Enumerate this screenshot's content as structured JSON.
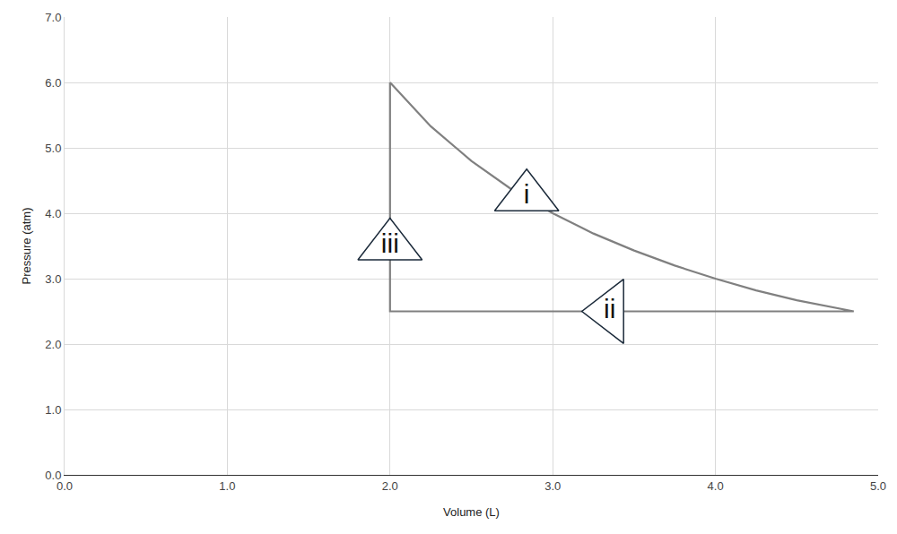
{
  "chart_data": {
    "type": "line",
    "x_label": "Volume (L)",
    "y_label": "Pressure (atm)",
    "xlim": [
      0,
      5
    ],
    "ylim": [
      0,
      7
    ],
    "xticks": [
      {
        "value": 0,
        "label": "0.0"
      },
      {
        "value": 1,
        "label": "1.0"
      },
      {
        "value": 2,
        "label": "2.0"
      },
      {
        "value": 3,
        "label": "3.0"
      },
      {
        "value": 4,
        "label": "4.0"
      },
      {
        "value": 5,
        "label": "5.0"
      }
    ],
    "yticks": [
      {
        "value": 0,
        "label": "0.0"
      },
      {
        "value": 1,
        "label": "1.0"
      },
      {
        "value": 2,
        "label": "2.0"
      },
      {
        "value": 3,
        "label": "3.0"
      },
      {
        "value": 4,
        "label": "4.0"
      },
      {
        "value": 5,
        "label": "5.0"
      },
      {
        "value": 6,
        "label": "6.0"
      },
      {
        "value": 7,
        "label": "7.0"
      }
    ],
    "grid": true,
    "color": "#808080",
    "x": [
      2.0,
      2.25,
      2.5,
      2.75,
      3.0,
      3.25,
      3.5,
      3.75,
      4.0,
      4.25,
      4.5,
      4.85,
      2.0,
      2.0
    ],
    "values": [
      6.0,
      5.33,
      4.8,
      4.36,
      4.0,
      3.69,
      3.43,
      3.2,
      3.0,
      2.82,
      2.67,
      2.5,
      2.5,
      6.0
    ],
    "annotations": [
      {
        "text": "i",
        "x": 2.84,
        "y": 4.25,
        "marker": "triangle-up"
      },
      {
        "text": "ii",
        "x": 3.35,
        "y": 2.5,
        "marker": "triangle-left"
      },
      {
        "text": "iii",
        "x": 2.0,
        "y": 3.5,
        "marker": "triangle-up"
      }
    ]
  }
}
